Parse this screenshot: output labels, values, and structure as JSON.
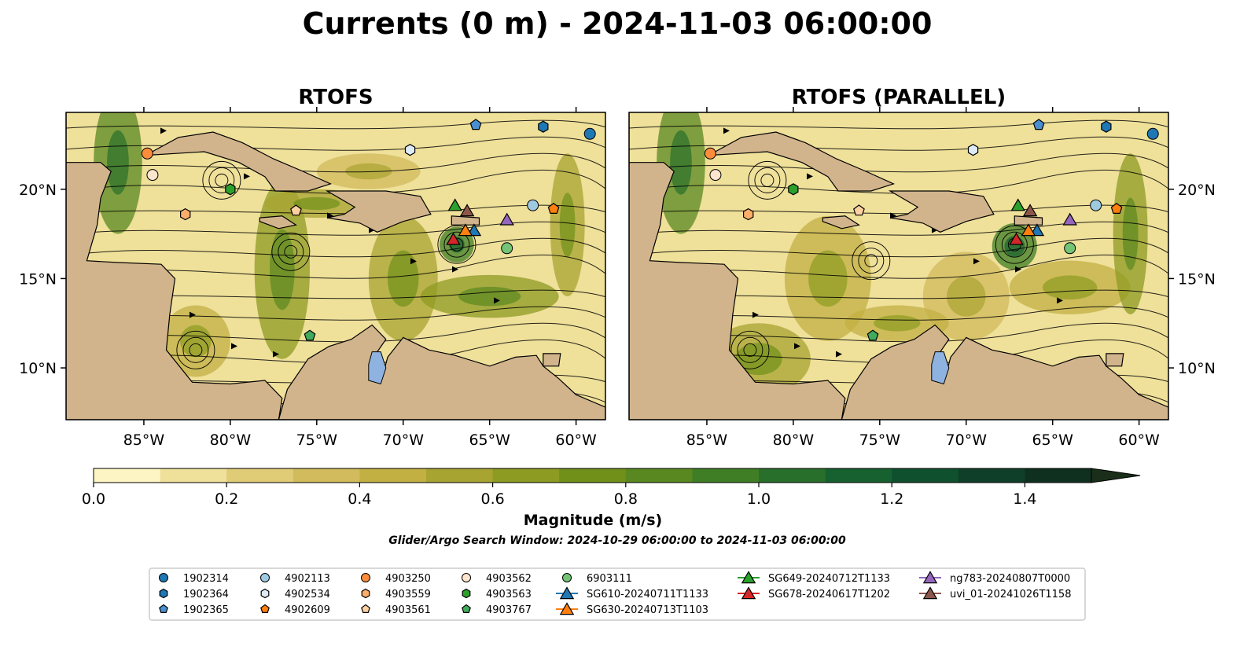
{
  "chart_data": {
    "type": "map-streamplot",
    "title": "Currents (0 m) - 2024-11-03 06:00:00",
    "panels": [
      {
        "title": "RTOFS"
      },
      {
        "title": "RTOFS (PARALLEL)"
      }
    ],
    "x_ticks": [
      "85°W",
      "80°W",
      "75°W",
      "70°W",
      "65°W",
      "60°W"
    ],
    "x_tick_values": [
      -85,
      -80,
      -75,
      -70,
      -65,
      -60
    ],
    "y_ticks": [
      "10°N",
      "15°N",
      "20°N"
    ],
    "y_tick_values": [
      10,
      15,
      20
    ],
    "lon_range": [
      -89.5,
      -58.3
    ],
    "lat_range": [
      7.1,
      24.3
    ],
    "colorbar": {
      "label": "Magnitude (m/s)",
      "ticks": [
        "0.0",
        "0.2",
        "0.4",
        "0.6",
        "0.8",
        "1.0",
        "1.2",
        "1.4"
      ],
      "range": [
        0,
        1.5
      ],
      "extend": "max",
      "colors": [
        "#fdf5c4",
        "#efe09a",
        "#e0cc77",
        "#d1bb5c",
        "#c2b043",
        "#a8a432",
        "#8d9b22",
        "#71901a",
        "#5a8820",
        "#3f7e24",
        "#286f2b",
        "#17602f",
        "#0f502e",
        "#0f3f28",
        "#10301f",
        "#1a2e19"
      ]
    },
    "subtitle": "Glider/Argo Search Window: 2024-10-29 06:00:00 to 2024-11-03 06:00:00",
    "legend": [
      {
        "name": "1902314",
        "marker": "circle",
        "color": "#1f77b4"
      },
      {
        "name": "1902364",
        "marker": "hexagon",
        "color": "#1f77b4"
      },
      {
        "name": "1902365",
        "marker": "pentagon",
        "color": "#4a90d0"
      },
      {
        "name": "4902113",
        "marker": "circle",
        "color": "#9ecae1"
      },
      {
        "name": "4902534",
        "marker": "hexagon",
        "color": "#deebf7"
      },
      {
        "name": "4902609",
        "marker": "pentagon",
        "color": "#ff7f0e"
      },
      {
        "name": "4903250",
        "marker": "circle",
        "color": "#fd8d3c"
      },
      {
        "name": "4903559",
        "marker": "hexagon",
        "color": "#fdae6b"
      },
      {
        "name": "4903561",
        "marker": "pentagon",
        "color": "#fdd0a2"
      },
      {
        "name": "4903562",
        "marker": "circle",
        "color": "#fee6ce"
      },
      {
        "name": "4903563",
        "marker": "hexagon",
        "color": "#2ca02c"
      },
      {
        "name": "4903767",
        "marker": "pentagon",
        "color": "#41ab5d"
      },
      {
        "name": "6903111",
        "marker": "circle",
        "color": "#74c476"
      },
      {
        "name": "SG610-20240711T1133",
        "marker": "triangle",
        "color": "#1f77b4"
      },
      {
        "name": "SG630-20240713T1103",
        "marker": "triangle",
        "color": "#ff7f0e"
      },
      {
        "name": "SG649-20240712T1133",
        "marker": "triangle",
        "color": "#2ca02c"
      },
      {
        "name": "SG678-20240617T1202",
        "marker": "triangle",
        "color": "#d62728"
      },
      {
        "name": "ng783-20240807T0000",
        "marker": "triangle",
        "color": "#9467bd"
      },
      {
        "name": "uvi_01-20241026T1158",
        "marker": "triangle",
        "color": "#8c564b"
      }
    ],
    "markers": [
      {
        "name": "1902314",
        "lon": -59.2,
        "lat": 23.1
      },
      {
        "name": "1902364",
        "lon": -61.9,
        "lat": 23.5
      },
      {
        "name": "1902365",
        "lon": -65.8,
        "lat": 23.6
      },
      {
        "name": "4902534",
        "lon": -69.6,
        "lat": 22.2
      },
      {
        "name": "4903250",
        "lon": -84.8,
        "lat": 22.0
      },
      {
        "name": "4903562",
        "lon": -84.5,
        "lat": 20.8
      },
      {
        "name": "4903563",
        "lon": -80.0,
        "lat": 20.0
      },
      {
        "name": "4903559",
        "lon": -82.6,
        "lat": 18.6
      },
      {
        "name": "4903561",
        "lon": -76.2,
        "lat": 18.8
      },
      {
        "name": "4902113",
        "lon": -62.5,
        "lat": 19.1
      },
      {
        "name": "4902609",
        "lon": -61.3,
        "lat": 18.9
      },
      {
        "name": "6903111",
        "lon": -64.0,
        "lat": 16.7
      },
      {
        "name": "4903767",
        "lon": -75.4,
        "lat": 11.8
      },
      {
        "name": "uvi_01-20241026T1158",
        "lon": -66.3,
        "lat": 18.8
      },
      {
        "name": "ng783-20240807T0000",
        "lon": -64.0,
        "lat": 18.3
      },
      {
        "name": "SG610-20240711T1133",
        "lon": -65.9,
        "lat": 17.7
      },
      {
        "name": "SG630-20240713T1103",
        "lon": -66.4,
        "lat": 17.7
      },
      {
        "name": "SG649-20240712T1133",
        "lon": -67.0,
        "lat": 19.1
      },
      {
        "name": "SG678-20240617T1202",
        "lon": -67.1,
        "lat": 17.2
      }
    ],
    "grid": false
  }
}
